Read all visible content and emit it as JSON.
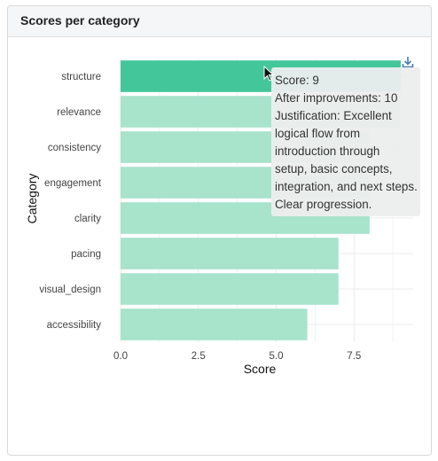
{
  "card": {
    "title": "Scores per category"
  },
  "chart_data": {
    "type": "bar",
    "orientation": "horizontal",
    "categories": [
      "structure",
      "relevance",
      "consistency",
      "engagement",
      "clarity",
      "pacing",
      "visual_design",
      "accessibility"
    ],
    "values": [
      9,
      9,
      8,
      8,
      8,
      7,
      7,
      6
    ],
    "xlabel": "Score",
    "ylabel": "Category",
    "xlim": [
      0,
      9.4
    ],
    "xticks": [
      "0.0",
      "2.5",
      "5.0",
      "7.5"
    ],
    "grid": true,
    "highlighted_category": "structure",
    "colors": {
      "bar": "#a8e3cc",
      "highlight": "#43c699",
      "grid": "#ebebeb"
    }
  },
  "tooltip": {
    "lines": [
      "Score: 9",
      "After improvements: 10",
      "Justification: Excellent",
      "logical flow from",
      "introduction through",
      "setup, basic concepts,",
      "integration, and next steps.",
      "Clear progression."
    ]
  },
  "icons": {
    "download": "download-icon",
    "cursor": "mouse-pointer-icon"
  }
}
